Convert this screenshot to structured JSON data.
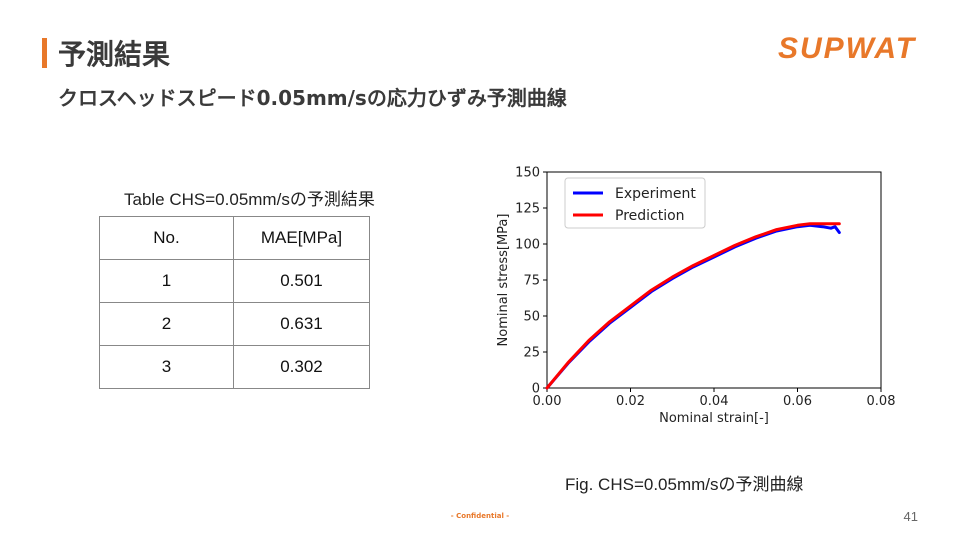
{
  "slide": {
    "title": "予測結果",
    "subtitle": "クロスヘッドスピード0.05mm/sの応力ひずみ予測曲線",
    "logo_text": "SUPWAT",
    "confidential": "- Confidential -",
    "page_number": "41",
    "accent_color": "#E8782A"
  },
  "table": {
    "caption": "Table CHS=0.05mm/sの予測結果",
    "headers": [
      "No.",
      "MAE[MPa]"
    ],
    "rows": [
      [
        "1",
        "0.501"
      ],
      [
        "2",
        "0.631"
      ],
      [
        "3",
        "0.302"
      ]
    ]
  },
  "figure": {
    "caption": "Fig. CHS=0.05mm/sの予測曲線"
  },
  "chart_data": {
    "type": "line",
    "xlabel": "Nominal strain[-]",
    "ylabel": "Nominal stress[MPa]",
    "xlim": [
      0.0,
      0.08
    ],
    "ylim": [
      0,
      150
    ],
    "xticks": [
      "0.00",
      "0.02",
      "0.04",
      "0.06",
      "0.08"
    ],
    "yticks": [
      "0",
      "25",
      "50",
      "75",
      "100",
      "125",
      "150"
    ],
    "xtick_values": [
      0.0,
      0.02,
      0.04,
      0.06,
      0.08
    ],
    "ytick_values": [
      0,
      25,
      50,
      75,
      100,
      125,
      150
    ],
    "grid": false,
    "legend_position": "top-left",
    "series": [
      {
        "name": "Experiment",
        "color": "#0000ff",
        "x": [
          0.0,
          0.005,
          0.01,
          0.015,
          0.02,
          0.025,
          0.03,
          0.035,
          0.04,
          0.045,
          0.05,
          0.055,
          0.06,
          0.063,
          0.066,
          0.068,
          0.069,
          0.0695,
          0.07
        ],
        "y": [
          0,
          17,
          32,
          45,
          56,
          67,
          76,
          84,
          91,
          98,
          104,
          109,
          112,
          113,
          112,
          111,
          112,
          110,
          108
        ]
      },
      {
        "name": "Prediction",
        "color": "#ff0000",
        "x": [
          0.0,
          0.005,
          0.01,
          0.015,
          0.02,
          0.025,
          0.03,
          0.035,
          0.04,
          0.045,
          0.05,
          0.055,
          0.06,
          0.063,
          0.066,
          0.068,
          0.07
        ],
        "y": [
          0,
          17.5,
          33,
          46,
          57,
          68,
          77,
          85,
          92,
          99,
          105,
          110,
          113,
          114,
          114,
          114,
          114
        ]
      }
    ]
  }
}
